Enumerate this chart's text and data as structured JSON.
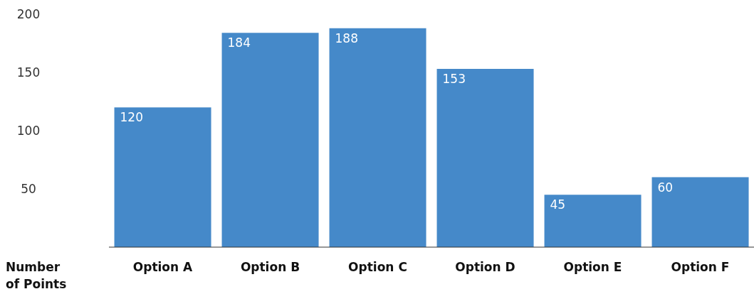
{
  "chart_data": {
    "type": "bar",
    "ylabel": "Number of Points",
    "categories": [
      "Option A",
      "Option B",
      "Option C",
      "Option D",
      "Option E",
      "Option F"
    ],
    "values": [
      120,
      184,
      188,
      153,
      45,
      60
    ],
    "color": "#4589c9",
    "ylim": [
      0,
      200
    ],
    "yticks": [
      50,
      100,
      150,
      200
    ],
    "grid": false,
    "data_labels": true
  }
}
